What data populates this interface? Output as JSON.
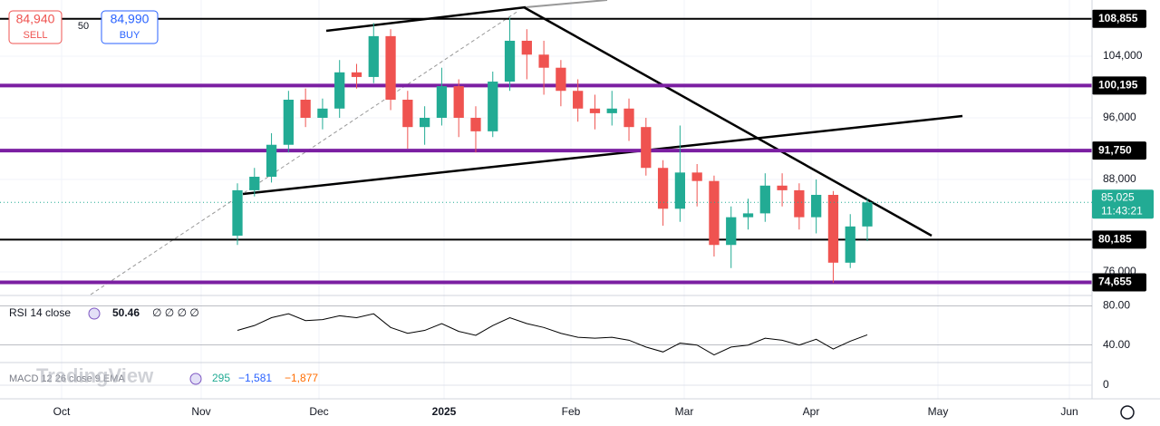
{
  "order_panel": {
    "sell_price": "84,940",
    "sell_label": "SELL",
    "spread": "50",
    "buy_price": "84,990",
    "buy_label": "BUY"
  },
  "chart_data": {
    "type": "candlestick",
    "open": [
      80700,
      86600,
      88350,
      92500,
      98350,
      96000,
      97200,
      101900,
      101300,
      106600,
      98350,
      94800,
      96000,
      100100,
      96000,
      94250,
      100700,
      106000,
      104200,
      102500,
      99500,
      97200,
      96600,
      97200,
      94800,
      89500,
      84200,
      88900,
      87800,
      79500,
      83100,
      83600,
      87200,
      86600,
      83100,
      86000,
      77200,
      81900
    ],
    "high": [
      87500,
      89500,
      94000,
      99500,
      99800,
      98500,
      103500,
      103000,
      108300,
      107500,
      99500,
      97500,
      102500,
      101000,
      97500,
      102000,
      109000,
      107500,
      106000,
      103500,
      101000,
      99000,
      99500,
      98500,
      96000,
      90500,
      95000,
      90000,
      88500,
      84500,
      85500,
      88800,
      88800,
      87500,
      88000,
      86500,
      83500,
      85500
    ],
    "low": [
      79500,
      85800,
      87600,
      91500,
      94800,
      94500,
      96000,
      99800,
      100500,
      97000,
      92000,
      92500,
      95000,
      93500,
      91500,
      93500,
      99500,
      101000,
      99000,
      97500,
      95500,
      94500,
      95000,
      93000,
      88500,
      82000,
      82500,
      84500,
      78000,
      76500,
      81500,
      82500,
      84500,
      81500,
      81000,
      74600,
      76500,
      80000
    ],
    "close": [
      86600,
      88350,
      92500,
      98350,
      96000,
      97200,
      101900,
      101300,
      106600,
      98350,
      94800,
      96000,
      100100,
      96000,
      94250,
      100700,
      106000,
      104200,
      102500,
      99500,
      97200,
      96600,
      97200,
      94800,
      89500,
      84200,
      88900,
      87800,
      79500,
      83100,
      83600,
      87200,
      86600,
      83100,
      86000,
      77200,
      81900,
      85025
    ],
    "up_color": "#22ab94",
    "down_color": "#ef5350",
    "ylim": [
      73060,
      111290
    ],
    "yticks": [
      {
        "value": 104000,
        "label": "104,000"
      },
      {
        "value": 96000,
        "label": "96,000"
      },
      {
        "value": 88000,
        "label": "88,000"
      },
      {
        "value": 76000,
        "label": "76,000"
      }
    ],
    "levels": [
      {
        "value": 108855,
        "label": "108,855",
        "color": "#000000"
      },
      {
        "value": 100195,
        "label": "100,195",
        "color": "#7b1fa2"
      },
      {
        "value": 91750,
        "label": "91,750",
        "color": "#7b1fa2"
      },
      {
        "value": 80185,
        "label": "80,185",
        "color": "#000000"
      },
      {
        "value": 74655,
        "label": "74,655",
        "color": "#7b1fa2"
      }
    ],
    "last_price": {
      "value": 85025,
      "label": "85,025",
      "countdown": "11:43:21",
      "color": "#22ab94"
    },
    "x_labels": [
      "Oct",
      "Nov",
      "Dec",
      "2025",
      "Feb",
      "Mar",
      "Apr",
      "May",
      "Jun"
    ]
  },
  "rsi": {
    "title": "RSI 14 close",
    "value": "50.46",
    "na": "∅ ∅ ∅ ∅",
    "color": "#000000",
    "values": [
      55,
      60,
      68,
      72,
      65,
      66,
      70,
      68,
      72,
      58,
      52,
      55,
      62,
      54,
      50,
      60,
      68,
      62,
      58,
      52,
      48,
      47,
      48,
      45,
      38,
      33,
      42,
      40,
      30,
      38,
      40,
      47,
      45,
      40,
      46,
      36,
      44,
      50.46
    ],
    "ylim": [
      24,
      87
    ],
    "yticks": [
      {
        "value": 80,
        "label": "80.00"
      },
      {
        "value": 40,
        "label": "40.00"
      }
    ]
  },
  "macd": {
    "title": "MACD 12 26 close 9 EMA",
    "histogram": "295",
    "macd": "−1,581",
    "signal": "−1,877",
    "yticks": [
      0
    ]
  },
  "watermark": "TradingView"
}
